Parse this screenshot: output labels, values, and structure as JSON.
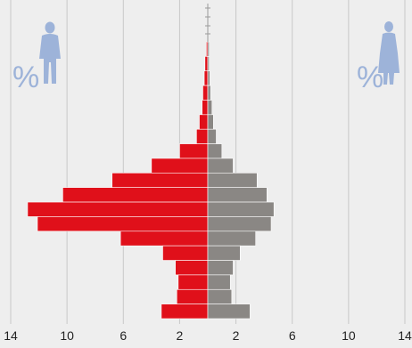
{
  "colors": {
    "background": "#eeeeee",
    "male": "#e0101a",
    "female": "#8a8784",
    "figure": "#9db3d9",
    "grid": "#c8c8c8",
    "axis_text": "#222222"
  },
  "labels": {
    "male_percent": "%",
    "female_percent": "%"
  },
  "icons": {
    "male": "male-silhouette-icon",
    "female": "female-silhouette-icon"
  },
  "chart_data": {
    "type": "bar",
    "orientation": "horizontal",
    "subtype": "population-pyramid",
    "xlim": [
      -14,
      14
    ],
    "tick_values": [
      -14,
      -10,
      -6,
      -2,
      2,
      6,
      10,
      14
    ],
    "tick_labels": [
      "14",
      "10",
      "6",
      "2",
      "2",
      "6",
      "10",
      "14"
    ],
    "grid": true,
    "series": [
      {
        "values": [
          0.1,
          0.2,
          0.25,
          0.35,
          0.4,
          0.6,
          0.8,
          2.0,
          4.0,
          6.8,
          10.3,
          12.8,
          12.1,
          6.2,
          3.2,
          2.3,
          2.1,
          2.2,
          3.3
        ]
      },
      {
        "values": [
          0.1,
          0.1,
          0.15,
          0.2,
          0.3,
          0.4,
          0.6,
          1.0,
          1.8,
          3.5,
          4.2,
          4.7,
          4.5,
          3.4,
          2.3,
          1.8,
          1.6,
          1.7,
          3.0
        ]
      }
    ]
  }
}
